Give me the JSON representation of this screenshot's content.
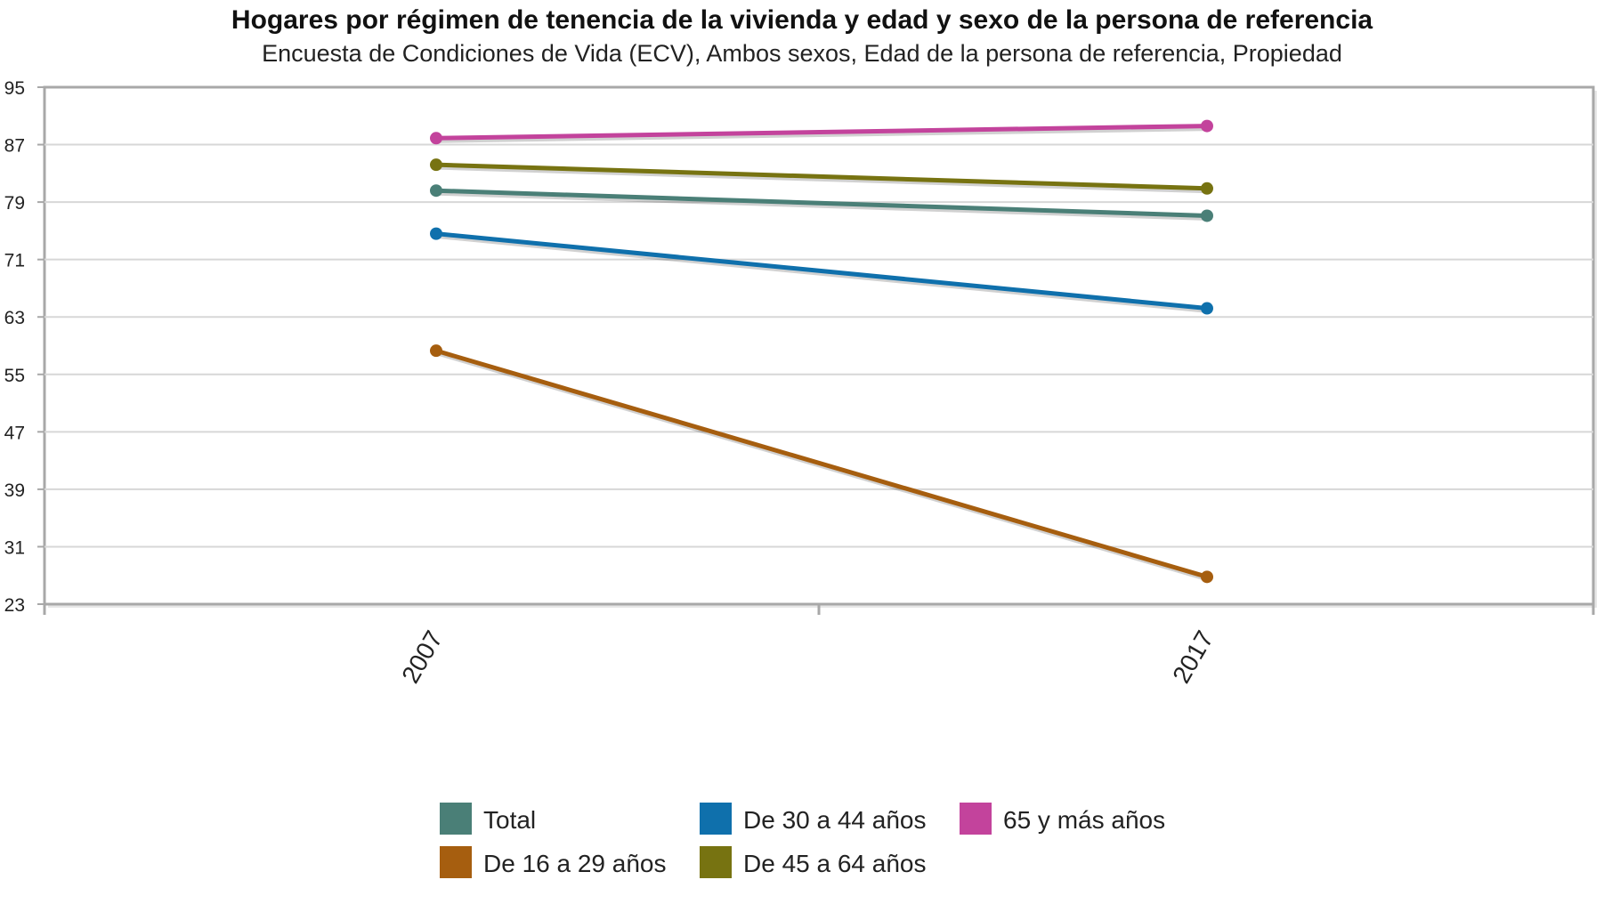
{
  "chart_data": {
    "type": "line",
    "title": "Hogares por régimen de tenencia de la vivienda y edad y sexo de la persona de referencia",
    "subtitle": "Encuesta de Condiciones de Vida (ECV), Ambos sexos, Edad de la persona de referencia, Propiedad",
    "x": [
      "2007",
      "2017"
    ],
    "y_ticks": [
      "95",
      "87",
      "79",
      "71",
      "63",
      "55",
      "47",
      "39",
      "31",
      "23"
    ],
    "ylim": [
      23,
      95
    ],
    "grid": true,
    "legend_position": "bottom",
    "series": [
      {
        "name": "Total",
        "color": "#4a7f77",
        "values": [
          80.6,
          77.1
        ]
      },
      {
        "name": "De 16 a 29 años",
        "color": "#a65e0f",
        "values": [
          58.3,
          26.8
        ]
      },
      {
        "name": "De 30 a 44 años",
        "color": "#0f70ac",
        "values": [
          74.6,
          64.2
        ]
      },
      {
        "name": "De 45 a 64 años",
        "color": "#777311",
        "values": [
          84.2,
          80.9
        ]
      },
      {
        "name": "65 y más años",
        "color": "#c3439c",
        "values": [
          87.9,
          89.6
        ]
      }
    ]
  }
}
